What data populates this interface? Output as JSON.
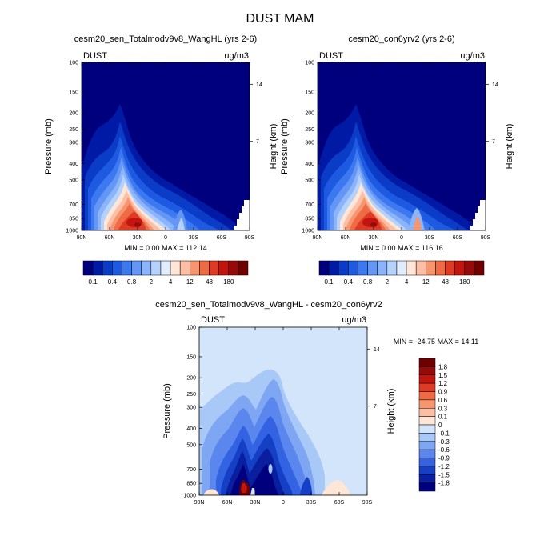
{
  "figure": {
    "title": "DUST MAM"
  },
  "chart_data": [
    {
      "type": "heatmap",
      "title": "cesm20_sen_Totalmodv9v8_WangHL (yrs 2-6)",
      "field_label": "DUST",
      "units": "ug/m3",
      "xlabel": "",
      "ylabel": "Pressure (mb)",
      "right_label": "Height (km)",
      "x_ticks": [
        "90N",
        "60N",
        "30N",
        "0",
        "30S",
        "60S",
        "90S"
      ],
      "y_ticks": [
        "100",
        "150",
        "200",
        "250",
        "300",
        "400",
        "500",
        "700",
        "850",
        "1000"
      ],
      "right_ticks": [
        "14",
        "7"
      ],
      "min_label": "MIN =",
      "min": "0.00",
      "max_label": "MAX =",
      "max": "112.14",
      "colorbar_labels": [
        "0.1",
        "0.4",
        "0.8",
        "2",
        "4",
        "12",
        "48",
        "180"
      ]
    },
    {
      "type": "heatmap",
      "title": "cesm20_con6yrv2 (yrs 2-6)",
      "field_label": "DUST",
      "units": "ug/m3",
      "xlabel": "",
      "ylabel": "Pressure (mb)",
      "right_label": "Height (km)",
      "x_ticks": [
        "90N",
        "60N",
        "30N",
        "0",
        "30S",
        "60S",
        "90S"
      ],
      "y_ticks": [
        "100",
        "150",
        "200",
        "250",
        "300",
        "400",
        "500",
        "700",
        "850",
        "1000"
      ],
      "right_ticks": [
        "14",
        "7"
      ],
      "min_label": "MIN =",
      "min": "0.00",
      "max_label": "MAX =",
      "max": "116.16",
      "colorbar_labels": [
        "0.1",
        "0.4",
        "0.8",
        "2",
        "4",
        "12",
        "48",
        "180"
      ]
    },
    {
      "type": "heatmap",
      "title": "cesm20_sen_Totalmodv9v8_WangHL - cesm20_con6yrv2",
      "field_label": "DUST",
      "units": "ug/m3",
      "xlabel": "",
      "ylabel": "Pressure (mb)",
      "right_label": "Height (km)",
      "x_ticks": [
        "90N",
        "60N",
        "30N",
        "0",
        "30S",
        "60S",
        "90S"
      ],
      "y_ticks": [
        "100",
        "150",
        "200",
        "250",
        "300",
        "400",
        "500",
        "700",
        "850",
        "1000"
      ],
      "right_ticks": [
        "14",
        "7"
      ],
      "min_label": "MIN =",
      "min": "-24.75",
      "max_label": "MAX =",
      "max": "14.11",
      "colorbar_labels": [
        "1.8",
        "1.5",
        "1.2",
        "0.9",
        "0.6",
        "0.3",
        "0.1",
        "0",
        "-0.1",
        "-0.3",
        "-0.6",
        "-0.9",
        "-1.2",
        "-1.5",
        "-1.8"
      ]
    }
  ],
  "palettes": {
    "concentration": [
      "#00007f",
      "#001aa6",
      "#0a3cc8",
      "#1e5ae1",
      "#3c78f0",
      "#6496f5",
      "#8cb4fa",
      "#b4d2fc",
      "#e1ecfd",
      "#ffe6d6",
      "#fcbfa6",
      "#f7956f",
      "#ef6b45",
      "#df3b24",
      "#c3150f",
      "#960a0a",
      "#6e0000"
    ],
    "difference": [
      "#6e0000",
      "#960a0a",
      "#c3150f",
      "#df3b24",
      "#ef6b45",
      "#f7956f",
      "#fcbfa6",
      "#ffe6d6",
      "#d3e5fb",
      "#a8c8f8",
      "#7fa6f2",
      "#5a86ee",
      "#3363e3",
      "#153fc4",
      "#0a1fa0",
      "#00007f"
    ]
  }
}
